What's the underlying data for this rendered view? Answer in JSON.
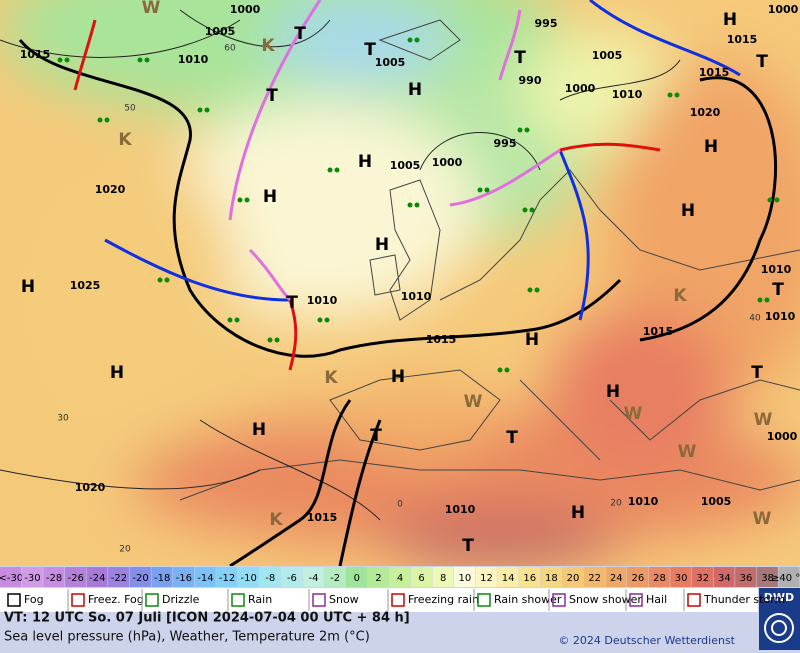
{
  "map": {
    "isobar_labels": [
      1000,
      1005,
      1010,
      1015,
      1020,
      1025,
      1020,
      1015,
      1010,
      1010,
      1005,
      1000,
      1010,
      1010,
      1015,
      1020,
      1015,
      1015,
      1000,
      1005,
      1000,
      1010,
      990,
      995,
      995,
      1000,
      1005,
      1010,
      1010,
      1015,
      1005
    ],
    "pressure_centers": [
      "H",
      "H",
      "H",
      "H",
      "H",
      "H",
      "H",
      "H",
      "H",
      "H",
      "H",
      "H",
      "H",
      "H",
      "T",
      "T",
      "T",
      "T",
      "T",
      "T",
      "T",
      "T",
      "T",
      "T",
      "T",
      "K",
      "K",
      "K",
      "K",
      "K",
      "W",
      "W",
      "W",
      "W",
      "W",
      "W"
    ],
    "graticule_labels": [
      60,
      50,
      40,
      30,
      20,
      0,
      20
    ]
  },
  "legend": {
    "scale": [
      "<-30",
      -30,
      -28,
      -26,
      -24,
      -22,
      -20,
      -18,
      -16,
      -14,
      -12,
      -10,
      -8,
      -6,
      -4,
      -2,
      0,
      2,
      4,
      6,
      8,
      10,
      12,
      14,
      16,
      18,
      20,
      22,
      24,
      26,
      28,
      30,
      32,
      34,
      36,
      38,
      "≥40 °C"
    ],
    "scale_colors": [
      "#c78be0",
      "#d29be8",
      "#c68de3",
      "#b57fdc",
      "#a77ad8",
      "#9a82e0",
      "#8490e8",
      "#7aa0f0",
      "#78b2f5",
      "#7cc2f7",
      "#84d0f8",
      "#92dcf6",
      "#a2e6f0",
      "#b2ecea",
      "#c2f0e0",
      "#b4ecc0",
      "#9ee49a",
      "#b2ea96",
      "#c6f09a",
      "#dcf4a6",
      "#eef8b6",
      "#fbfbdc",
      "#fbf6c2",
      "#faeea6",
      "#f8e28e",
      "#f6d67e",
      "#f4c874",
      "#f2b86c",
      "#f0a866",
      "#ee9862",
      "#ea8a60",
      "#e67c60",
      "#de7064",
      "#d26868",
      "#c26c6c",
      "#a87878",
      "#b0b0b0"
    ],
    "weather": [
      "Fog",
      "Freez. Fog",
      "Drizzle",
      "Rain",
      "Snow",
      "Freezing rain",
      "Rain shower",
      "Snow shower",
      "Hail",
      "Thunder storm"
    ],
    "logo": "DWD"
  },
  "footer": {
    "valid_time": "VT: 12 UTC So.  07 Juli [ICON 2024-07-04  00 UTC + 84 h]",
    "description": "Sea level pressure (hPa), Weather, Temperature 2m (°C)",
    "copyright": "© 2024 Deutscher Wetterdienst"
  }
}
